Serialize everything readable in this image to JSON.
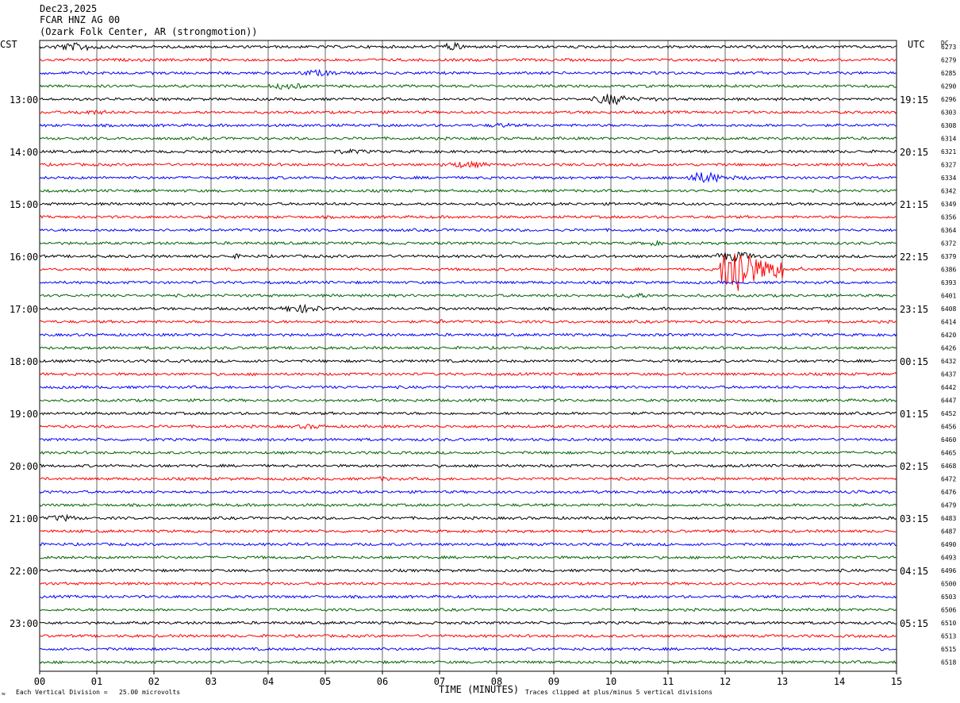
{
  "header": {
    "date": "Dec23,2025",
    "station": "FCAR HNZ AG 00",
    "location": "(Ozark Folk Center, AR (strongmotion))"
  },
  "left_zone": "CST",
  "right_zone": "UTC",
  "dc_label": "DC",
  "footer": {
    "scale_note": "Each Vertical Division =   25.00 microvolts",
    "clip_note": "Traces clipped at plus/minus 5 vertical divisions",
    "corner_mark": "≈"
  },
  "colors": {
    "trace_cycle": [
      "#000000",
      "#ff0000",
      "#0000ff",
      "#006400"
    ],
    "grid": "#000000"
  },
  "chart_data": {
    "type": "line",
    "title": "",
    "xlabel": "TIME (MINUTES)",
    "ylabel": "",
    "xlim": [
      0,
      15
    ],
    "x_ticks": [
      "00",
      "01",
      "02",
      "03",
      "04",
      "05",
      "06",
      "07",
      "08",
      "09",
      "10",
      "11",
      "12",
      "13",
      "14",
      "15"
    ],
    "trace_count": 48,
    "trace_minutes": 15,
    "left_hour_labels": [
      "13:00",
      "14:00",
      "15:00",
      "16:00",
      "17:00",
      "18:00",
      "19:00",
      "20:00",
      "21:00",
      "22:00",
      "23:00"
    ],
    "right_hour_labels": [
      "19:15",
      "20:15",
      "21:15",
      "22:15",
      "23:15",
      "00:15",
      "01:15",
      "02:15",
      "03:15",
      "04:15",
      "05:15"
    ],
    "dc_offsets": [
      6273,
      6279,
      6285,
      6290,
      6296,
      6303,
      6308,
      6314,
      6321,
      6327,
      6334,
      6342,
      6349,
      6356,
      6364,
      6372,
      6379,
      6386,
      6393,
      6401,
      6408,
      6414,
      6420,
      6426,
      6432,
      6437,
      6442,
      6447,
      6452,
      6456,
      6460,
      6465,
      6468,
      6472,
      6476,
      6479,
      6483,
      6487,
      6490,
      6493,
      6496,
      6500,
      6503,
      6506,
      6510,
      6513,
      6515,
      6518
    ],
    "events": [
      {
        "trace": 0,
        "start_min": 0.2,
        "end_min": 1.8,
        "amplitude": 5
      },
      {
        "trace": 0,
        "start_min": 7.0,
        "end_min": 7.8,
        "amplitude": 5
      },
      {
        "trace": 2,
        "start_min": 4.5,
        "end_min": 5.8,
        "amplitude": 4
      },
      {
        "trace": 3,
        "start_min": 4.0,
        "end_min": 5.2,
        "amplitude": 4
      },
      {
        "trace": 4,
        "start_min": 9.7,
        "end_min": 10.8,
        "amplitude": 7
      },
      {
        "trace": 5,
        "start_min": 0.5,
        "end_min": 2.0,
        "amplitude": 3
      },
      {
        "trace": 6,
        "start_min": 7.8,
        "end_min": 8.8,
        "amplitude": 3
      },
      {
        "trace": 8,
        "start_min": 5.0,
        "end_min": 6.5,
        "amplitude": 3
      },
      {
        "trace": 9,
        "start_min": 7.0,
        "end_min": 8.6,
        "amplitude": 4
      },
      {
        "trace": 10,
        "start_min": 11.3,
        "end_min": 12.5,
        "amplitude": 7
      },
      {
        "trace": 15,
        "start_min": 10.5,
        "end_min": 11.3,
        "amplitude": 3
      },
      {
        "trace": 16,
        "start_min": 3.3,
        "end_min": 3.8,
        "amplitude": 3
      },
      {
        "trace": 16,
        "start_min": 11.8,
        "end_min": 13.1,
        "amplitude": 6
      },
      {
        "trace": 17,
        "start_min": 11.9,
        "end_min": 13.0,
        "amplitude": 34
      },
      {
        "trace": 17,
        "start_min": 13.2,
        "end_min": 13.5,
        "amplitude": 4
      },
      {
        "trace": 19,
        "start_min": 10.2,
        "end_min": 11.0,
        "amplitude": 4
      },
      {
        "trace": 20,
        "start_min": 4.2,
        "end_min": 5.6,
        "amplitude": 5
      },
      {
        "trace": 21,
        "start_min": 6.9,
        "end_min": 7.3,
        "amplitude": 3
      },
      {
        "trace": 29,
        "start_min": 4.4,
        "end_min": 5.6,
        "amplitude": 3
      },
      {
        "trace": 33,
        "start_min": 5.8,
        "end_min": 6.5,
        "amplitude": 3
      },
      {
        "trace": 34,
        "start_min": 14.1,
        "end_min": 14.7,
        "amplitude": 3
      },
      {
        "trace": 36,
        "start_min": 0.1,
        "end_min": 1.2,
        "amplitude": 4
      }
    ]
  }
}
